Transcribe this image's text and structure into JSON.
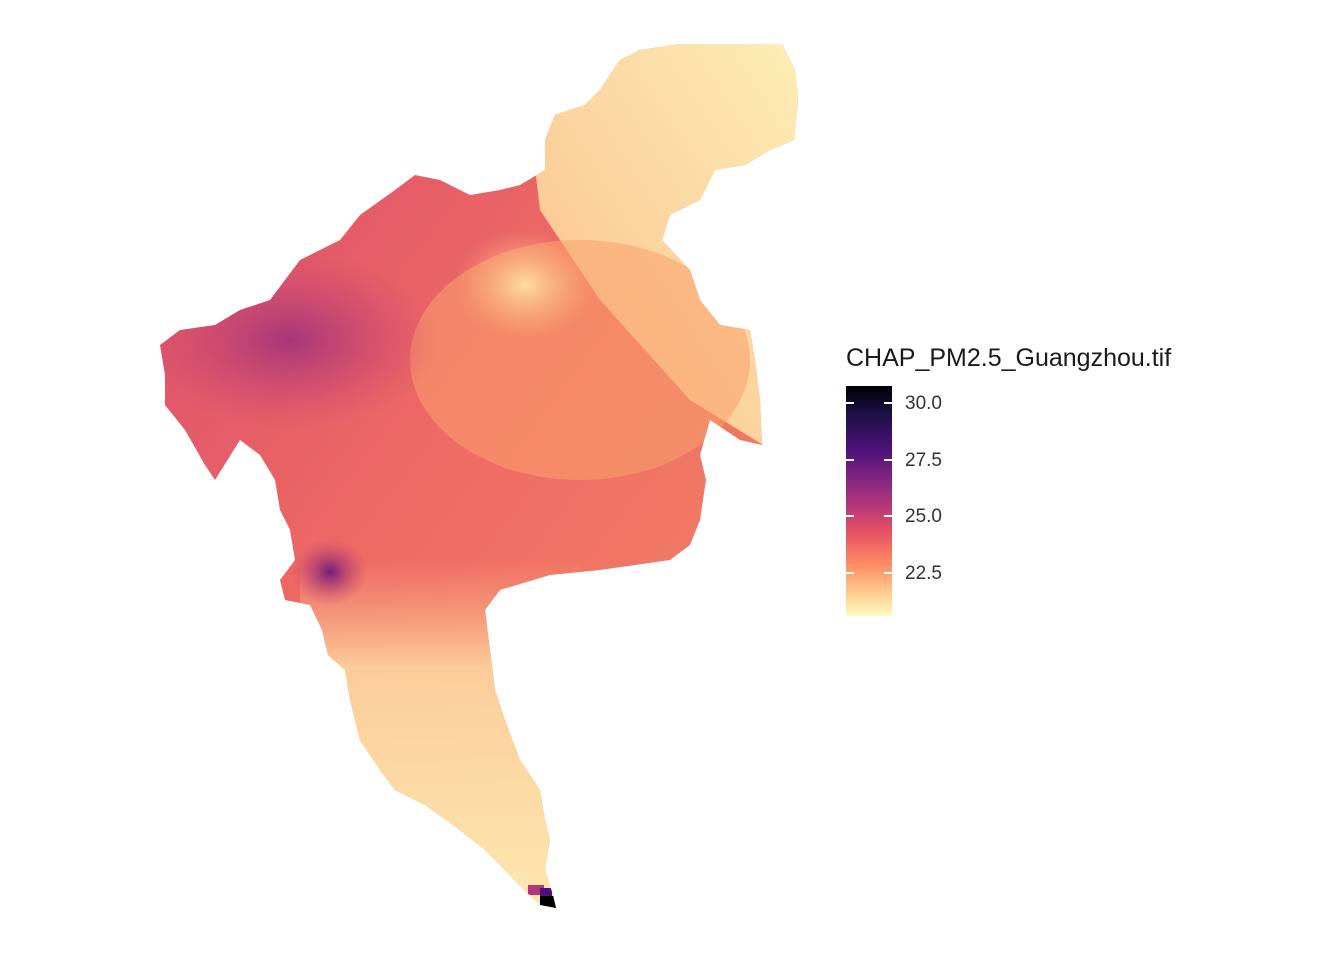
{
  "legend": {
    "title": "CHAP_PM2.5_Guangzhou.tif",
    "ticks": [
      "30.0",
      "27.5",
      "25.0",
      "22.5"
    ],
    "tick_values": [
      30.0,
      27.5,
      25.0,
      22.5
    ],
    "range": [
      20.8,
      31.0
    ]
  },
  "colors": {
    "scale_stops": [
      "#000004",
      "#1c1044",
      "#4f127b",
      "#812581",
      "#b5367a",
      "#e55064",
      "#fb8761",
      "#fec287",
      "#fcfdbf"
    ],
    "background": "#ffffff"
  }
}
